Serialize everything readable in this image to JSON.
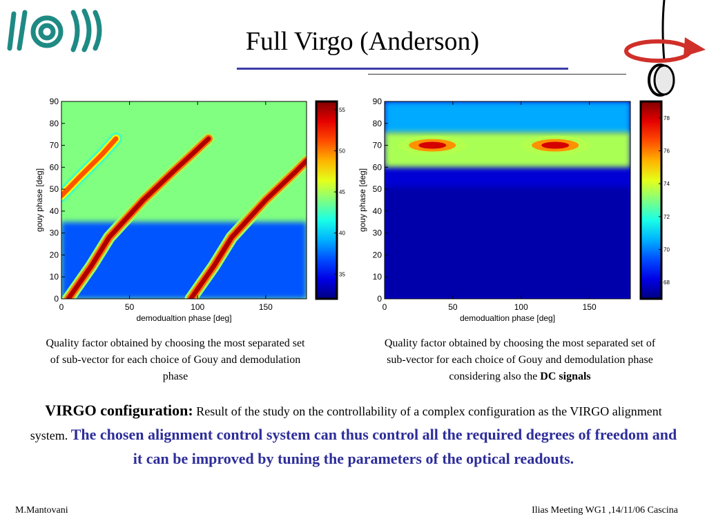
{
  "slide": {
    "title": "Full Virgo (Anderson)",
    "caption_left": "Quality factor obtained by choosing the most separated set of sub-vector for each choice of Gouy and demodulation phase",
    "caption_right_main": "Quality factor obtained by choosing the most separated set of sub-vector for each choice of Gouy and demodulation phase considering also the ",
    "caption_right_bold": "DC signals",
    "body_lead": "VIRGO configuration",
    "body_colon": ":",
    "body_plain": " Result of the study on the controllability of a complex configuration as the VIRGO alignment system. ",
    "body_emph": "The chosen alignment control system can thus control all the required degrees of freedom and it can be improved by tuning the parameters of the optical readouts.",
    "footer_left": "M.Mantovani",
    "footer_right": "Ilias Meeting WG1 ,14/11/06 Cascina",
    "colors": {
      "title_rule": "#3b3ba8",
      "emphasis": "#2d2d9a"
    },
    "icons": [
      "virgo-logo-icon",
      "rotating-mirror-icon"
    ]
  },
  "chart_data": [
    {
      "type": "heatmap",
      "xlabel": "demodualtion phase [deg]",
      "ylabel": "gouy phase [deg]",
      "xlim": [
        0,
        180
      ],
      "ylim": [
        0,
        90
      ],
      "x_ticks": [
        0,
        50,
        100,
        150
      ],
      "y_ticks": [
        0,
        10,
        20,
        30,
        40,
        50,
        60,
        70,
        80,
        90
      ],
      "colorbar": {
        "ticks": [
          35,
          40,
          45,
          50,
          55
        ],
        "range": [
          32,
          56
        ]
      },
      "background_level": 44,
      "bands": [
        {
          "y": [
            35,
            50
          ],
          "level": 44
        },
        {
          "y": [
            0,
            35
          ],
          "level": 37
        }
      ],
      "ridges": [
        {
          "points": [
            [
              5,
              0
            ],
            [
              22,
              15
            ],
            [
              35,
              28
            ],
            [
              60,
              45
            ],
            [
              82,
              58
            ],
            [
              96,
              66
            ],
            [
              108,
              73
            ]
          ],
          "peak": 55
        },
        {
          "points": [
            [
              95,
              0
            ],
            [
              112,
              15
            ],
            [
              125,
              28
            ],
            [
              150,
              45
            ],
            [
              172,
              58
            ],
            [
              180,
              63
            ]
          ],
          "peak": 55
        },
        {
          "points": [
            [
              0,
              47
            ],
            [
              14,
              56
            ],
            [
              30,
              66
            ],
            [
              40,
              73
            ]
          ],
          "peak": 51
        }
      ]
    },
    {
      "type": "heatmap",
      "xlabel": "demodualtion phase [deg]",
      "ylabel": "gouy phase [deg]",
      "xlim": [
        0,
        180
      ],
      "ylim": [
        0,
        90
      ],
      "x_ticks": [
        0,
        50,
        100,
        150
      ],
      "y_ticks": [
        0,
        10,
        20,
        30,
        40,
        50,
        60,
        70,
        80,
        90
      ],
      "colorbar": {
        "ticks": [
          68,
          70,
          72,
          74,
          76,
          78
        ],
        "range": [
          67,
          79
        ]
      },
      "background_level": 68,
      "bands": [
        {
          "y": [
            75,
            90
          ],
          "level": 70.5
        },
        {
          "y": [
            60,
            76
          ],
          "level": 73.5
        },
        {
          "y": [
            0,
            51
          ],
          "level": 67.5
        }
      ],
      "hotspots": [
        {
          "x": 35,
          "y": 70,
          "level": 78
        },
        {
          "x": 125,
          "y": 70,
          "level": 78
        }
      ]
    }
  ]
}
